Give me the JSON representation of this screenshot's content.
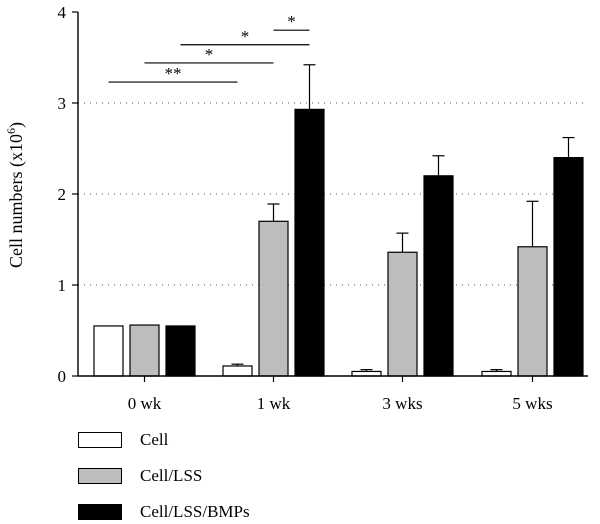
{
  "chart_data": {
    "type": "bar",
    "title": "",
    "xlabel": "",
    "ylabel": "Cell numbers (x10",
    "ylabel_superscript": "6",
    "ylabel_suffix": ")",
    "categories": [
      "0 wk",
      "1 wk",
      "3 wks",
      "5 wks"
    ],
    "ylim": [
      0,
      4
    ],
    "yticks": [
      0,
      1,
      2,
      3,
      4
    ],
    "grid": "dotted horizontal at 1, 2, 3",
    "legend_position": "bottom-left",
    "series": [
      {
        "name": "Cell",
        "color": "#ffffff",
        "values": [
          0.55,
          0.11,
          0.05,
          0.05
        ],
        "errors": [
          0,
          0.02,
          0.02,
          0.02
        ]
      },
      {
        "name": "Cell/LSS",
        "color": "#bdbdbd",
        "values": [
          0.56,
          1.7,
          1.36,
          1.42
        ],
        "errors": [
          0,
          0.19,
          0.21,
          0.5
        ]
      },
      {
        "name": "Cell/LSS/BMPs",
        "color": "#000000",
        "values": [
          0.55,
          2.93,
          2.2,
          2.4
        ],
        "errors": [
          0,
          0.49,
          0.22,
          0.22
        ]
      }
    ],
    "annotations": [
      {
        "text": "**",
        "from": {
          "category": 0,
          "series": 0
        },
        "to": {
          "category": 1,
          "series": 0
        },
        "y": 3.23
      },
      {
        "text": "*",
        "from": {
          "category": 0,
          "series": 1
        },
        "to": {
          "category": 1,
          "series": 1
        },
        "y": 3.44
      },
      {
        "text": "*",
        "from": {
          "category": 0,
          "series": 2
        },
        "to": {
          "category": 1,
          "series": 2
        },
        "y": 3.64
      },
      {
        "text": "*",
        "from": {
          "category": 1,
          "series": 1
        },
        "to": {
          "category": 1,
          "series": 2
        },
        "y": 3.8
      }
    ]
  }
}
